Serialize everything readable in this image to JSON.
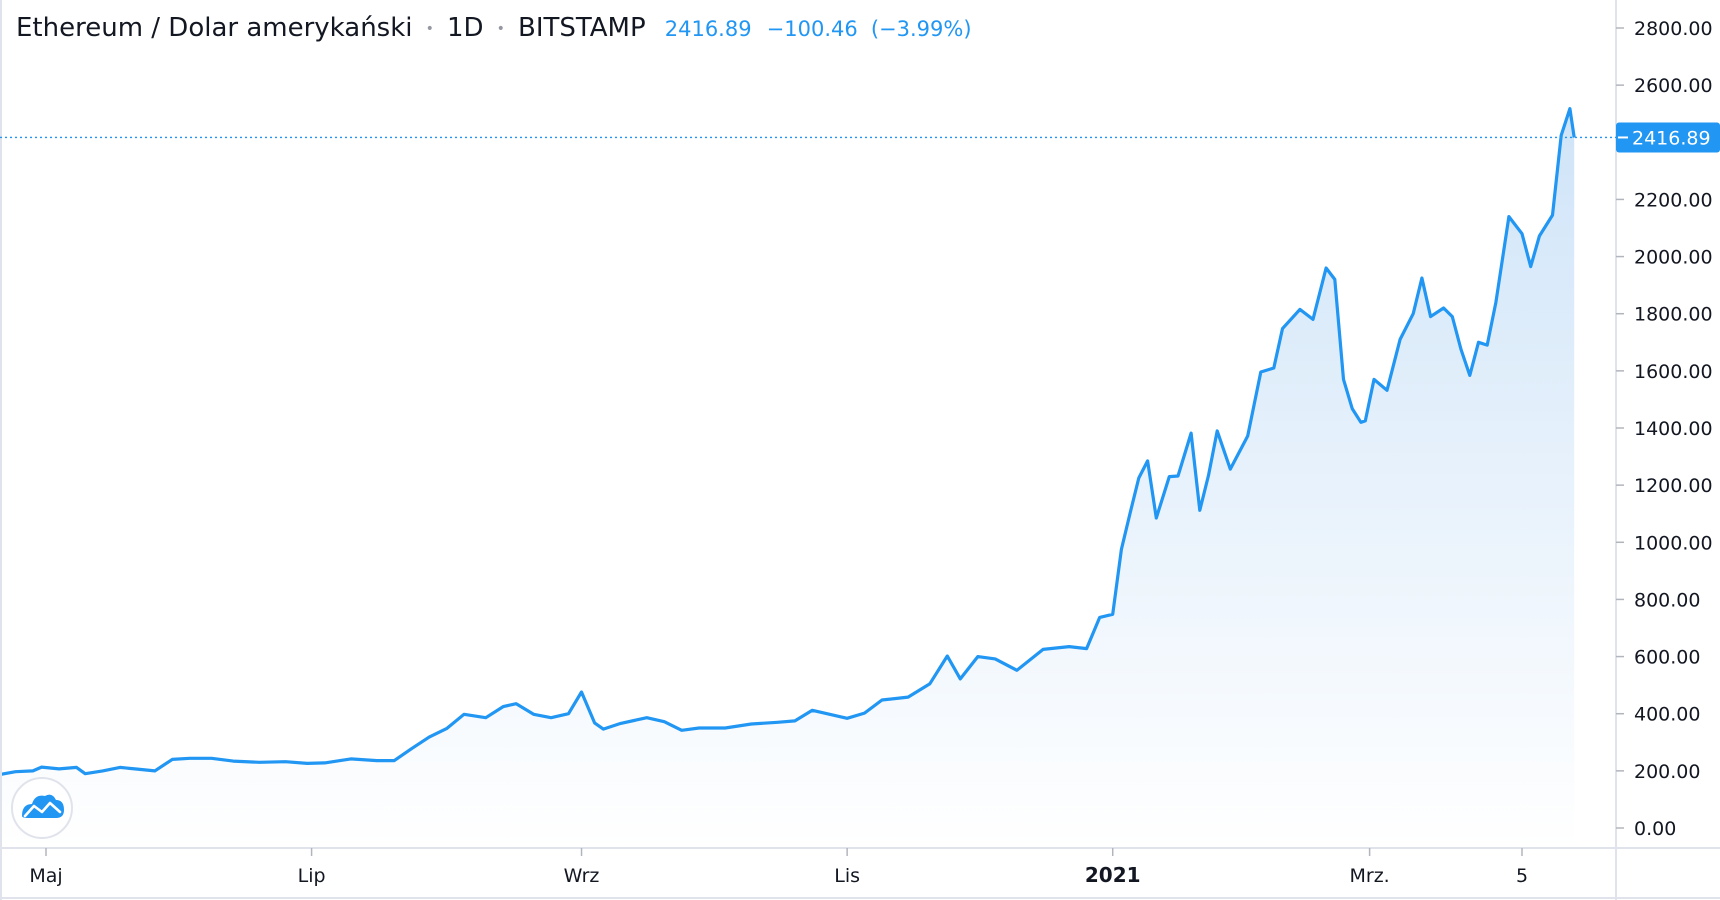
{
  "header": {
    "symbol": "Ethereum / Dolar amerykański",
    "interval": "1D",
    "exchange": "BITSTAMP",
    "last_price": "2416.89",
    "change": "−100.46",
    "change_pct": "(−3.99%)",
    "separator": "•"
  },
  "price_tag": "2416.89",
  "logo_icon": "tradingview-cloud-icon",
  "colors": {
    "line": "#2196f3",
    "area_top": "#cfe4f8",
    "area_bottom": "#ffffff",
    "text": "#131722",
    "axis_line": "#e0e3eb",
    "price_tag_bg": "#2196f3"
  },
  "chart_data": {
    "type": "area",
    "title": "Ethereum / Dolar amerykański",
    "xlabel": "",
    "ylabel": "",
    "ylim": [
      -60,
      2900
    ],
    "grid": false,
    "y_ticks": [
      "2800.00",
      "2600.00",
      "2400.00",
      "2200.00",
      "2000.00",
      "1800.00",
      "1600.00",
      "1400.00",
      "1200.00",
      "1000.00",
      "800.00",
      "600.00",
      "400.00",
      "200.00",
      "0.00"
    ],
    "x_ticks": [
      {
        "label": "Maj",
        "date": "2020-05-01",
        "bold": false
      },
      {
        "label": "Lip",
        "date": "2020-07-01",
        "bold": false
      },
      {
        "label": "Wrz",
        "date": "2020-09-01",
        "bold": false
      },
      {
        "label": "Lis",
        "date": "2020-11-01",
        "bold": false
      },
      {
        "label": "2021",
        "date": "2021-01-01",
        "bold": true
      },
      {
        "label": "Mrz.",
        "date": "2021-03-01",
        "bold": false
      },
      {
        "label": "5",
        "date": "2021-04-05",
        "bold": false
      }
    ],
    "series": [
      {
        "values": [
          [
            "2020-04-12",
            158
          ],
          [
            "2020-04-20",
            186
          ],
          [
            "2020-04-24",
            197
          ],
          [
            "2020-04-28",
            200
          ],
          [
            "2020-04-30",
            213
          ],
          [
            "2020-05-04",
            207
          ],
          [
            "2020-05-08",
            212
          ],
          [
            "2020-05-10",
            190
          ],
          [
            "2020-05-14",
            200
          ],
          [
            "2020-05-18",
            212
          ],
          [
            "2020-05-22",
            206
          ],
          [
            "2020-05-26",
            200
          ],
          [
            "2020-05-30",
            240
          ],
          [
            "2020-06-03",
            244
          ],
          [
            "2020-06-08",
            244
          ],
          [
            "2020-06-13",
            234
          ],
          [
            "2020-06-19",
            230
          ],
          [
            "2020-06-25",
            232
          ],
          [
            "2020-06-30",
            226
          ],
          [
            "2020-07-04",
            228
          ],
          [
            "2020-07-10",
            242
          ],
          [
            "2020-07-16",
            236
          ],
          [
            "2020-07-20",
            236
          ],
          [
            "2020-07-24",
            278
          ],
          [
            "2020-07-28",
            318
          ],
          [
            "2020-08-01",
            348
          ],
          [
            "2020-08-05",
            398
          ],
          [
            "2020-08-10",
            386
          ],
          [
            "2020-08-14",
            425
          ],
          [
            "2020-08-17",
            435
          ],
          [
            "2020-08-21",
            398
          ],
          [
            "2020-08-25",
            386
          ],
          [
            "2020-08-29",
            400
          ],
          [
            "2020-09-01",
            476
          ],
          [
            "2020-09-04",
            368
          ],
          [
            "2020-09-06",
            346
          ],
          [
            "2020-09-10",
            366
          ],
          [
            "2020-09-16",
            386
          ],
          [
            "2020-09-20",
            372
          ],
          [
            "2020-09-24",
            342
          ],
          [
            "2020-09-28",
            350
          ],
          [
            "2020-10-04",
            350
          ],
          [
            "2020-10-10",
            364
          ],
          [
            "2020-10-16",
            370
          ],
          [
            "2020-10-20",
            375
          ],
          [
            "2020-10-24",
            412
          ],
          [
            "2020-10-28",
            398
          ],
          [
            "2020-11-01",
            384
          ],
          [
            "2020-11-05",
            402
          ],
          [
            "2020-11-09",
            448
          ],
          [
            "2020-11-15",
            458
          ],
          [
            "2020-11-20",
            505
          ],
          [
            "2020-11-24",
            602
          ],
          [
            "2020-11-27",
            522
          ],
          [
            "2020-12-01",
            600
          ],
          [
            "2020-12-05",
            592
          ],
          [
            "2020-12-10",
            552
          ],
          [
            "2020-12-16",
            625
          ],
          [
            "2020-12-22",
            635
          ],
          [
            "2020-12-26",
            628
          ],
          [
            "2020-12-29",
            737
          ],
          [
            "2021-01-01",
            748
          ],
          [
            "2021-01-03",
            975
          ],
          [
            "2021-01-05",
            1102
          ],
          [
            "2021-01-07",
            1225
          ],
          [
            "2021-01-09",
            1285
          ],
          [
            "2021-01-11",
            1085
          ],
          [
            "2021-01-14",
            1230
          ],
          [
            "2021-01-16",
            1232
          ],
          [
            "2021-01-19",
            1382
          ],
          [
            "2021-01-21",
            1112
          ],
          [
            "2021-01-23",
            1234
          ],
          [
            "2021-01-25",
            1390
          ],
          [
            "2021-01-28",
            1256
          ],
          [
            "2021-02-01",
            1372
          ],
          [
            "2021-02-04",
            1596
          ],
          [
            "2021-02-07",
            1610
          ],
          [
            "2021-02-09",
            1748
          ],
          [
            "2021-02-13",
            1815
          ],
          [
            "2021-02-16",
            1780
          ],
          [
            "2021-02-19",
            1960
          ],
          [
            "2021-02-21",
            1920
          ],
          [
            "2021-02-23",
            1570
          ],
          [
            "2021-02-25",
            1468
          ],
          [
            "2021-02-27",
            1420
          ],
          [
            "2021-02-28",
            1425
          ],
          [
            "2021-03-02",
            1570
          ],
          [
            "2021-03-05",
            1532
          ],
          [
            "2021-03-08",
            1710
          ],
          [
            "2021-03-11",
            1800
          ],
          [
            "2021-03-13",
            1925
          ],
          [
            "2021-03-15",
            1790
          ],
          [
            "2021-03-18",
            1820
          ],
          [
            "2021-03-20",
            1790
          ],
          [
            "2021-03-22",
            1675
          ],
          [
            "2021-03-24",
            1584
          ],
          [
            "2021-03-26",
            1700
          ],
          [
            "2021-03-28",
            1690
          ],
          [
            "2021-03-30",
            1840
          ],
          [
            "2021-04-02",
            2140
          ],
          [
            "2021-04-05",
            2080
          ],
          [
            "2021-04-07",
            1965
          ],
          [
            "2021-04-09",
            2072
          ],
          [
            "2021-04-12",
            2145
          ],
          [
            "2021-04-14",
            2424
          ],
          [
            "2021-04-16",
            2518
          ],
          [
            "2021-04-17",
            2416.89
          ]
        ]
      }
    ]
  }
}
